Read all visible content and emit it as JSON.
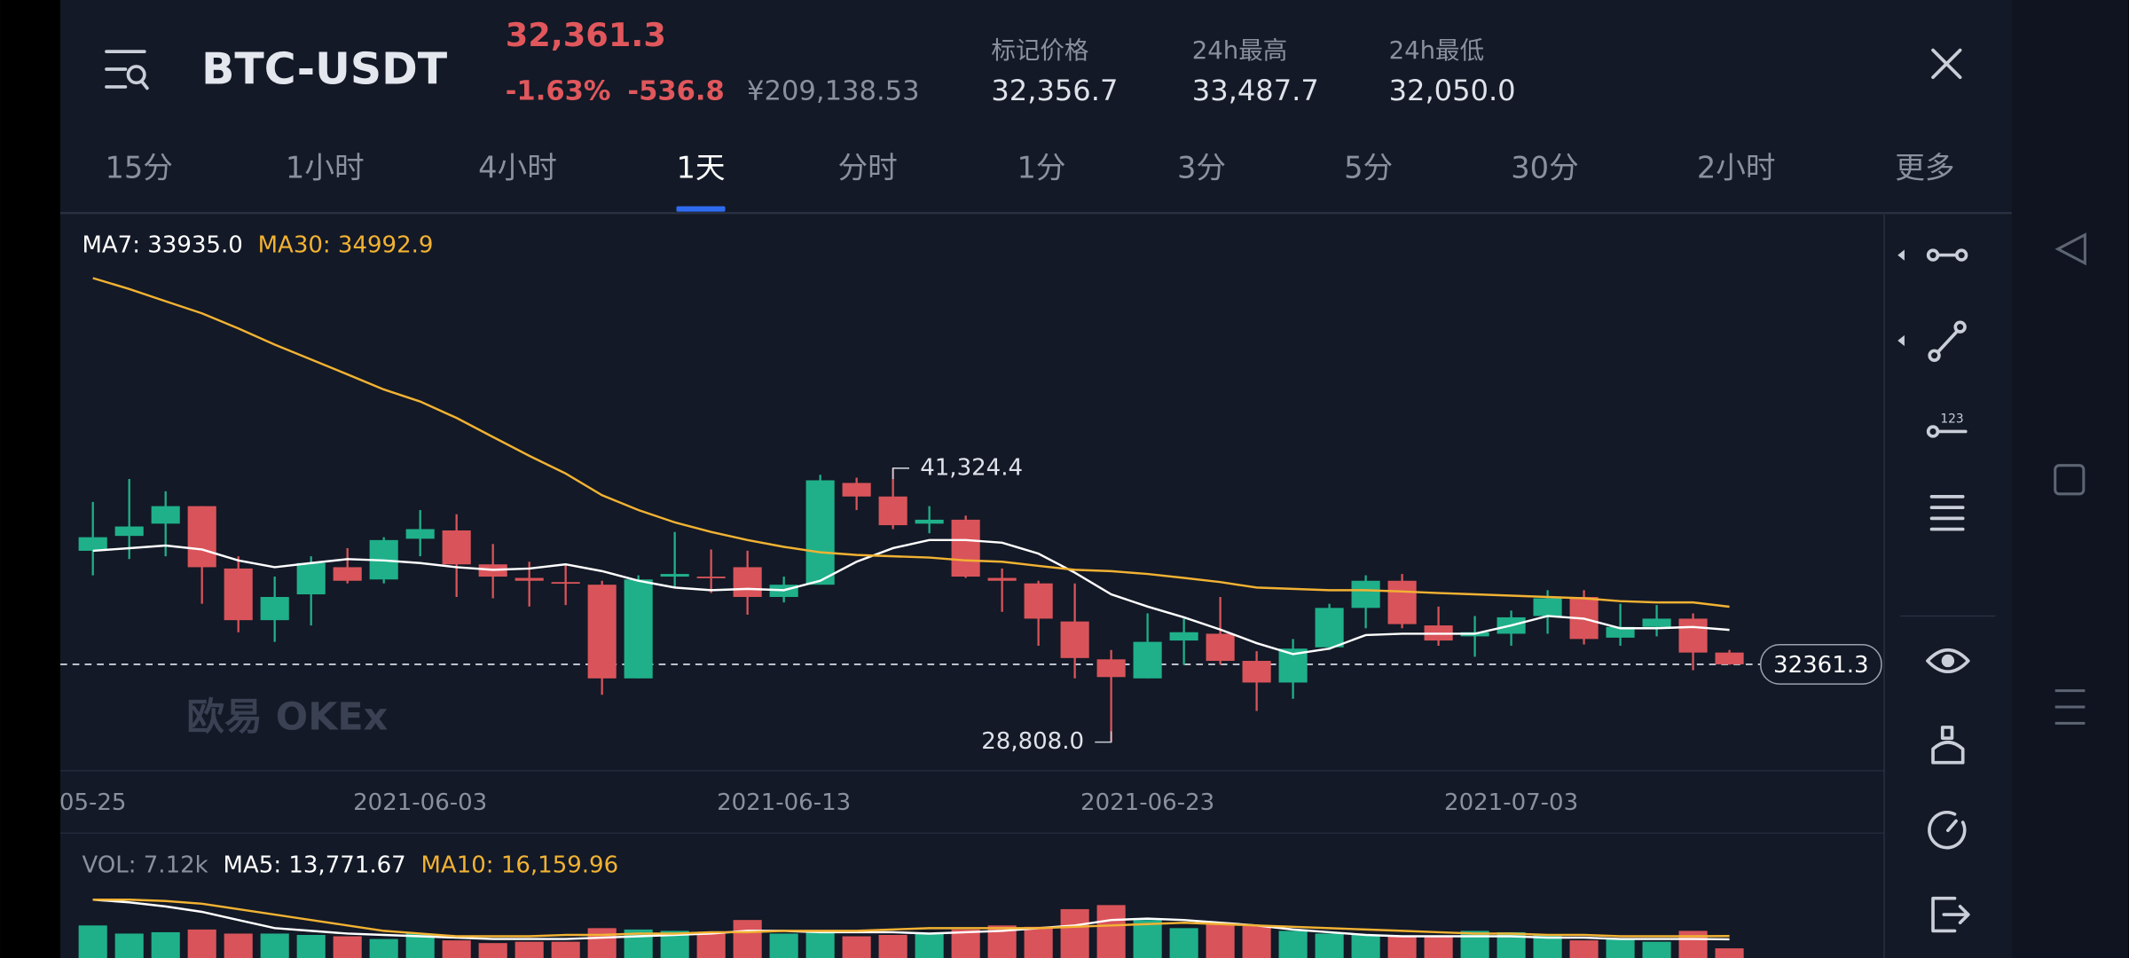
{
  "header": {
    "pair": "BTC-USDT",
    "price": "32,361.3",
    "change_pct": "-1.63%",
    "change": "-536.8",
    "cny": "¥209,138.53",
    "stats": [
      {
        "label": "标记价格",
        "value": "32,356.7"
      },
      {
        "label": "24h最高",
        "value": "33,487.7"
      },
      {
        "label": "24h最低",
        "value": "32,050.0"
      }
    ]
  },
  "tabs": {
    "items": [
      "15分",
      "1小时",
      "4小时",
      "1天",
      "分时",
      "1分",
      "3分",
      "5分",
      "30分",
      "2小时",
      "更多"
    ],
    "active": 3
  },
  "chart_data": [
    {
      "type": "candlestick",
      "watermark": "欧易 OKEx",
      "categories": [
        "05-25",
        null,
        null,
        null,
        null,
        null,
        null,
        null,
        null,
        "2021-06-03",
        null,
        null,
        null,
        null,
        null,
        null,
        null,
        null,
        null,
        "2021-06-13",
        null,
        null,
        null,
        null,
        null,
        null,
        null,
        null,
        null,
        "2021-06-23",
        null,
        null,
        null,
        null,
        null,
        null,
        null,
        null,
        null,
        "2021-07-03",
        null,
        null,
        null,
        null,
        null,
        null
      ],
      "open": [
        37550,
        38230,
        38790,
        39590,
        36740,
        34380,
        35560,
        36800,
        36240,
        38100,
        38480,
        36930,
        36310,
        36120,
        36000,
        31720,
        36370,
        36370,
        36800,
        35440,
        36000,
        40650,
        40030,
        38790,
        38970,
        36310,
        36060,
        34320,
        32590,
        31720,
        33450,
        33760,
        32520,
        31530,
        33140,
        34940,
        36180,
        34140,
        33640,
        33760,
        34570,
        35440,
        33580,
        34070,
        34450,
        32900
      ],
      "high": [
        39780,
        40830,
        40270,
        39590,
        37300,
        36370,
        37300,
        37670,
        38170,
        39410,
        39220,
        37860,
        37050,
        36930,
        36180,
        36430,
        38410,
        37610,
        37550,
        36370,
        41020,
        40890,
        41324.4,
        39590,
        39160,
        36740,
        36180,
        36060,
        33020,
        34690,
        34450,
        35440,
        32960,
        33520,
        35130,
        36430,
        36490,
        35000,
        34570,
        34820,
        35750,
        35750,
        35130,
        35070,
        34690,
        33020
      ],
      "low": [
        36430,
        37170,
        37300,
        35130,
        33830,
        33390,
        34140,
        36060,
        36060,
        37300,
        35440,
        35380,
        35000,
        35070,
        30970,
        31720,
        35870,
        35620,
        34630,
        35190,
        36000,
        39410,
        38540,
        38350,
        36310,
        34760,
        33210,
        31720,
        28808,
        31720,
        32340,
        32340,
        30230,
        30790,
        33020,
        34010,
        34010,
        33210,
        32710,
        33210,
        33760,
        33270,
        33210,
        33640,
        32090,
        32340
      ],
      "close": [
        38170,
        38660,
        39590,
        36800,
        34380,
        35440,
        36990,
        36180,
        38040,
        38540,
        36930,
        36370,
        36180,
        36060,
        31720,
        36240,
        36490,
        36310,
        35440,
        36000,
        40770,
        40030,
        38720,
        38970,
        36370,
        36180,
        34450,
        32650,
        31780,
        33390,
        33830,
        32520,
        31530,
        33080,
        34940,
        36180,
        34200,
        33450,
        33830,
        34510,
        35380,
        33520,
        34070,
        34450,
        32900,
        32361.3
      ],
      "up_color": "#1fb08a",
      "down_color": "#d9545a",
      "series": [
        {
          "name": "MA7: 33935.0",
          "color": "#ffffff",
          "values": [
            37550,
            37670,
            37790,
            37610,
            37110,
            36800,
            36990,
            37170,
            37110,
            36990,
            36800,
            36680,
            36740,
            36930,
            36620,
            36180,
            35870,
            35750,
            35810,
            35750,
            36180,
            37050,
            37670,
            38040,
            38040,
            37920,
            37420,
            36550,
            35560,
            35000,
            34510,
            33950,
            33330,
            32830,
            33080,
            33700,
            33760,
            33760,
            33760,
            34140,
            34570,
            34450,
            34010,
            34010,
            34070,
            33935.0
          ]
        },
        {
          "name": "MA30: 34992.9",
          "color": "#f2b233",
          "values": [
            50010,
            49510,
            48950,
            48400,
            47710,
            46970,
            46290,
            45610,
            44920,
            44370,
            43620,
            42750,
            41890,
            41080,
            40090,
            39410,
            38850,
            38410,
            38040,
            37730,
            37480,
            37360,
            37300,
            37240,
            37110,
            37050,
            36860,
            36680,
            36620,
            36490,
            36310,
            36120,
            35870,
            35810,
            35750,
            35750,
            35690,
            35620,
            35560,
            35500,
            35440,
            35380,
            35250,
            35190,
            35190,
            34992.9
          ]
        }
      ],
      "high_label": {
        "value": 41324.4,
        "label": "41,324.4"
      },
      "low_label": {
        "value": 28808,
        "label": "28,808.0"
      },
      "last_price": 32361.3,
      "ylim": [
        27500,
        52920
      ]
    },
    {
      "type": "bar",
      "series": [
        {
          "name": "VOL: 7.12k",
          "values": [
            24000,
            18000,
            19000,
            21000,
            18000,
            18000,
            17000,
            16000,
            14000,
            18000,
            13000,
            11000,
            12000,
            12000,
            22000,
            21000,
            20000,
            19000,
            28000,
            18000,
            20000,
            16000,
            17000,
            18000,
            21000,
            24000,
            23000,
            36000,
            39000,
            28000,
            22000,
            25000,
            24000,
            20000,
            18000,
            17000,
            16000,
            16000,
            20000,
            19000,
            17000,
            13000,
            14000,
            12000,
            20000,
            7120
          ]
        },
        {
          "name": "MA5: 13,771.67",
          "color": "#ffffff",
          "values": [
            43000,
            41000,
            38000,
            34000,
            28000,
            22000,
            20000,
            18000,
            17000,
            16000,
            15000,
            14000,
            14000,
            14000,
            15000,
            16000,
            17000,
            18000,
            20000,
            20000,
            19000,
            19000,
            19000,
            18000,
            19000,
            20000,
            22000,
            24000,
            28000,
            29000,
            28000,
            26000,
            24000,
            21000,
            19000,
            17000,
            16000,
            16000,
            16000,
            16000,
            15000,
            15000,
            14000,
            14000,
            14000,
            13771.67
          ]
        },
        {
          "name": "MA10: 16,159.96",
          "color": "#f2b233",
          "values": [
            43000,
            43000,
            42000,
            40000,
            36000,
            32000,
            28000,
            24000,
            20000,
            18000,
            16000,
            16000,
            16000,
            17000,
            17000,
            18000,
            18000,
            19000,
            19000,
            20000,
            20000,
            20000,
            21000,
            22000,
            22000,
            22000,
            22000,
            23000,
            24000,
            25000,
            26000,
            25000,
            24000,
            23000,
            22000,
            21000,
            20000,
            19000,
            18000,
            18000,
            17000,
            17000,
            16000,
            16000,
            16000,
            16159.96
          ]
        }
      ],
      "ylim": [
        0,
        56000
      ]
    }
  ]
}
